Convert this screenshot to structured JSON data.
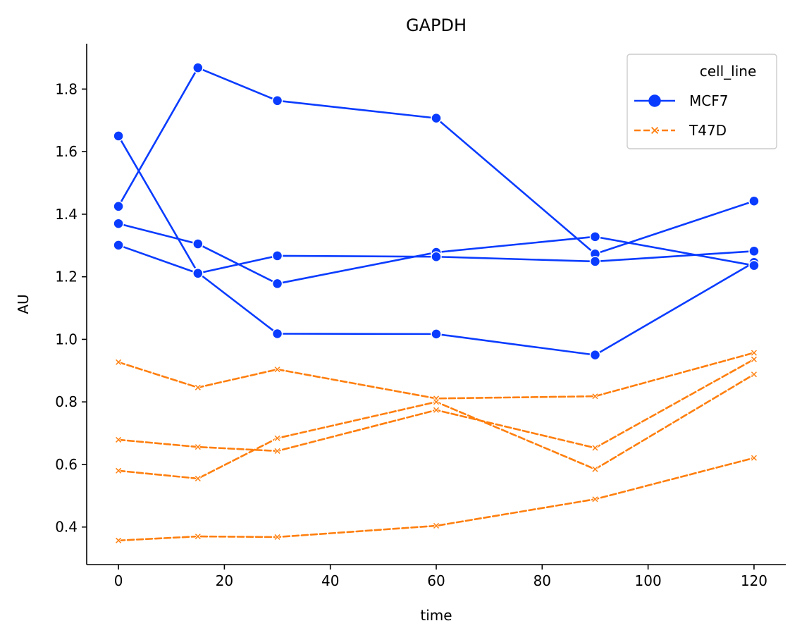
{
  "chart_data": {
    "type": "line",
    "title": "GAPDH",
    "xlabel": "time",
    "ylabel": "AU",
    "xlim": [
      -6,
      126
    ],
    "ylim": [
      0.28,
      1.945
    ],
    "xticks": [
      0,
      20,
      40,
      60,
      80,
      100,
      120
    ],
    "yticks": [
      0.4,
      0.6,
      0.8,
      1.0,
      1.2,
      1.4,
      1.6,
      1.8
    ],
    "ytick_labels": [
      "0.4",
      "0.6",
      "0.8",
      "1.0",
      "1.2",
      "1.4",
      "1.6",
      "1.8"
    ],
    "grid": false,
    "legend": {
      "title": "cell_line",
      "placement": "top-right",
      "entries": [
        "MCF7",
        "T47D"
      ]
    },
    "x": [
      0,
      15,
      30,
      60,
      90,
      120
    ],
    "series": [
      {
        "name": "MCF7",
        "group": "MCF7",
        "color": "#0a3cff",
        "dash": "solid",
        "marker": "circle",
        "values": [
          1.425,
          1.868,
          1.763,
          1.707,
          1.273,
          1.442
        ]
      },
      {
        "name": "MCF7",
        "group": "MCF7",
        "color": "#0a3cff",
        "dash": "solid",
        "marker": "circle",
        "values": [
          1.65,
          1.213,
          1.018,
          1.017,
          0.95,
          1.246
        ]
      },
      {
        "name": "MCF7",
        "group": "MCF7",
        "color": "#0a3cff",
        "dash": "solid",
        "marker": "circle",
        "values": [
          1.37,
          1.305,
          1.178,
          1.278,
          1.328,
          1.236
        ]
      },
      {
        "name": "MCF7",
        "group": "MCF7",
        "color": "#0a3cff",
        "dash": "solid",
        "marker": "circle",
        "values": [
          1.301,
          1.211,
          1.267,
          1.264,
          1.249,
          1.282
        ]
      },
      {
        "name": "T47D",
        "group": "T47D",
        "color": "#ff7f0e",
        "dash": "dashed",
        "marker": "x",
        "values": [
          0.927,
          0.846,
          0.904,
          0.811,
          0.818,
          0.957
        ]
      },
      {
        "name": "T47D",
        "group": "T47D",
        "color": "#ff7f0e",
        "dash": "dashed",
        "marker": "x",
        "values": [
          0.679,
          0.656,
          0.643,
          0.774,
          0.653,
          0.936
        ]
      },
      {
        "name": "T47D",
        "group": "T47D",
        "color": "#ff7f0e",
        "dash": "dashed",
        "marker": "x",
        "values": [
          0.58,
          0.555,
          0.684,
          0.8,
          0.585,
          0.888
        ]
      },
      {
        "name": "T47D",
        "group": "T47D",
        "color": "#ff7f0e",
        "dash": "dashed",
        "marker": "x",
        "values": [
          0.357,
          0.37,
          0.368,
          0.404,
          0.489,
          0.621
        ]
      }
    ]
  }
}
